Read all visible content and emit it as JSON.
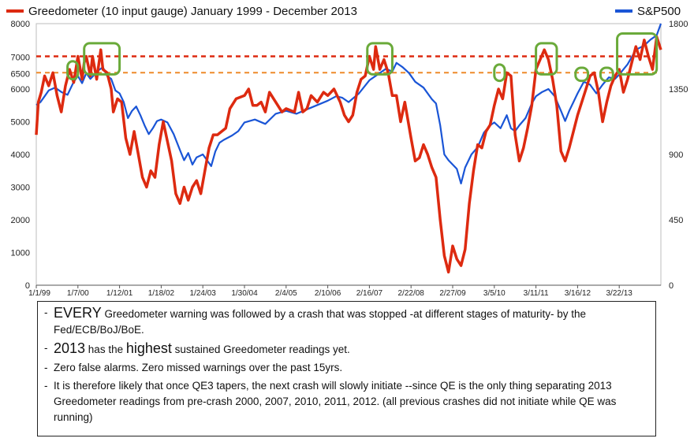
{
  "chart_data": {
    "type": "line",
    "title": "",
    "legend": {
      "left": "Greedometer (10 input gauge) January 1999 - December 2013",
      "right": "S&P500"
    },
    "colors": {
      "greedometer": "#dd2a10",
      "sp500": "#1a55d6",
      "upper_threshold": "#dd2a10",
      "lower_threshold": "#ee8a2a",
      "highlight": "#6aaa3a"
    },
    "left_axis": {
      "min": 0,
      "max": 8000,
      "ticks": [
        0,
        1000,
        2000,
        3000,
        4000,
        5000,
        6000,
        7000,
        8000
      ]
    },
    "right_axis": {
      "min": 0,
      "max": 1800,
      "ticks": [
        0,
        450,
        900,
        1350,
        1800
      ]
    },
    "threshold_labels": [
      {
        "value": 7000,
        "label": "7000"
      },
      {
        "value": 6500,
        "label": "6500"
      }
    ],
    "x_axis": {
      "start_year": 1999.0,
      "end_year": 2014.0,
      "tick_labels": [
        "1/1/99",
        "1/7/00",
        "1/12/01",
        "1/18/02",
        "1/24/03",
        "1/30/04",
        "2/4/05",
        "2/10/06",
        "2/16/07",
        "2/22/08",
        "2/27/09",
        "3/5/10",
        "3/11/11",
        "3/16/12",
        "3/22/13"
      ]
    },
    "series": [
      {
        "name": "Greedometer",
        "axis": "left",
        "x": [
          1999.0,
          1999.05,
          1999.12,
          1999.2,
          1999.3,
          1999.4,
          1999.5,
          1999.6,
          1999.7,
          1999.8,
          1999.9,
          2000.0,
          2000.1,
          2000.15,
          2000.2,
          2000.3,
          2000.35,
          2000.45,
          2000.55,
          2000.6,
          2000.7,
          2000.8,
          2000.85,
          2000.95,
          2001.05,
          2001.15,
          2001.25,
          2001.35,
          2001.45,
          2001.55,
          2001.65,
          2001.75,
          2001.85,
          2001.95,
          2002.05,
          2002.15,
          2002.25,
          2002.35,
          2002.45,
          2002.55,
          2002.65,
          2002.75,
          2002.85,
          2002.95,
          2003.05,
          2003.15,
          2003.25,
          2003.35,
          2003.45,
          2003.55,
          2003.65,
          2003.8,
          2004.0,
          2004.1,
          2004.2,
          2004.3,
          2004.4,
          2004.5,
          2004.6,
          2004.75,
          2004.9,
          2005.0,
          2005.2,
          2005.3,
          2005.4,
          2005.5,
          2005.6,
          2005.75,
          2005.9,
          2006.0,
          2006.15,
          2006.3,
          2006.4,
          2006.5,
          2006.6,
          2006.7,
          2006.8,
          2006.9,
          2007.0,
          2007.1,
          2007.15,
          2007.25,
          2007.35,
          2007.45,
          2007.55,
          2007.65,
          2007.75,
          2007.85,
          2008.0,
          2008.1,
          2008.2,
          2008.3,
          2008.4,
          2008.5,
          2008.6,
          2008.7,
          2008.8,
          2008.9,
          2009.0,
          2009.1,
          2009.2,
          2009.3,
          2009.4,
          2009.5,
          2009.6,
          2009.7,
          2009.8,
          2009.9,
          2010.0,
          2010.1,
          2010.2,
          2010.3,
          2010.4,
          2010.5,
          2010.6,
          2010.7,
          2010.8,
          2010.9,
          2011.0,
          2011.1,
          2011.2,
          2011.3,
          2011.4,
          2011.5,
          2011.6,
          2011.7,
          2011.8,
          2011.9,
          2012.0,
          2012.1,
          2012.2,
          2012.3,
          2012.4,
          2012.5,
          2012.6,
          2012.7,
          2012.8,
          2012.9,
          2013.0,
          2013.1,
          2013.2,
          2013.3,
          2013.4,
          2013.5,
          2013.6,
          2013.7,
          2013.8,
          2013.9,
          2014.0
        ],
        "values": [
          4600,
          5600,
          5900,
          6400,
          6100,
          6500,
          5800,
          5300,
          6100,
          6600,
          6200,
          7000,
          6300,
          6800,
          7000,
          6400,
          7000,
          6300,
          7200,
          6600,
          6500,
          6000,
          5300,
          5700,
          5600,
          4500,
          4000,
          4700,
          4000,
          3300,
          3000,
          3500,
          3300,
          4300,
          5000,
          4400,
          3800,
          2800,
          2500,
          3000,
          2600,
          3000,
          3200,
          2800,
          3500,
          4200,
          4600,
          4600,
          4700,
          4800,
          5400,
          5700,
          5800,
          6000,
          5500,
          5500,
          5600,
          5300,
          5900,
          5600,
          5300,
          5400,
          5300,
          5900,
          5300,
          5400,
          5800,
          5600,
          5900,
          5800,
          6000,
          5600,
          5200,
          5000,
          5200,
          5900,
          6300,
          6400,
          7000,
          6600,
          7300,
          6600,
          6900,
          6500,
          5800,
          5800,
          5000,
          5600,
          4500,
          3800,
          3900,
          4300,
          4000,
          3600,
          3300,
          2000,
          900,
          400,
          1200,
          800,
          600,
          1100,
          2500,
          3500,
          4300,
          4200,
          4700,
          4900,
          5500,
          6000,
          5700,
          6500,
          6400,
          4600,
          3800,
          4200,
          4800,
          5500,
          6600,
          6900,
          7200,
          6900,
          6300,
          5500,
          4100,
          3800,
          4200,
          4700,
          5200,
          5600,
          6000,
          6400,
          6500,
          5900,
          5000,
          5600,
          6100,
          6400,
          6600,
          5900,
          6300,
          6800,
          7300,
          6900,
          7500,
          7000,
          6600,
          7600,
          7200
        ]
      },
      {
        "name": "S&P500",
        "axis": "right",
        "x": [
          1999.0,
          1999.1,
          1999.2,
          1999.3,
          1999.45,
          1999.6,
          1999.75,
          1999.9,
          2000.0,
          2000.1,
          2000.2,
          2000.3,
          2000.4,
          2000.5,
          2000.6,
          2000.7,
          2000.8,
          2000.9,
          2001.0,
          2001.1,
          2001.2,
          2001.3,
          2001.4,
          2001.5,
          2001.6,
          2001.7,
          2001.8,
          2001.9,
          2002.0,
          2002.15,
          2002.3,
          2002.45,
          2002.55,
          2002.65,
          2002.75,
          2002.85,
          2003.0,
          2003.1,
          2003.2,
          2003.3,
          2003.4,
          2003.5,
          2003.7,
          2003.85,
          2004.0,
          2004.25,
          2004.5,
          2004.75,
          2005.0,
          2005.25,
          2005.5,
          2005.75,
          2006.0,
          2006.2,
          2006.35,
          2006.5,
          2006.75,
          2007.0,
          2007.25,
          2007.4,
          2007.55,
          2007.65,
          2007.8,
          2007.95,
          2008.1,
          2008.3,
          2008.5,
          2008.6,
          2008.7,
          2008.8,
          2008.9,
          2009.0,
          2009.1,
          2009.2,
          2009.3,
          2009.45,
          2009.6,
          2009.75,
          2009.9,
          2010.0,
          2010.15,
          2010.3,
          2010.4,
          2010.5,
          2010.6,
          2010.75,
          2010.9,
          2011.0,
          2011.15,
          2011.3,
          2011.45,
          2011.6,
          2011.7,
          2011.8,
          2011.9,
          2012.0,
          2012.15,
          2012.3,
          2012.45,
          2012.6,
          2012.75,
          2012.9,
          2013.0,
          2013.2,
          2013.4,
          2013.6,
          2013.75,
          2013.9,
          2014.0
        ],
        "values": [
          1240,
          1260,
          1300,
          1340,
          1360,
          1330,
          1310,
          1400,
          1440,
          1390,
          1460,
          1420,
          1450,
          1480,
          1500,
          1440,
          1420,
          1340,
          1320,
          1260,
          1150,
          1200,
          1230,
          1170,
          1100,
          1040,
          1080,
          1130,
          1140,
          1120,
          1040,
          930,
          860,
          910,
          830,
          880,
          900,
          860,
          820,
          920,
          980,
          1000,
          1030,
          1060,
          1120,
          1140,
          1110,
          1180,
          1200,
          1180,
          1210,
          1240,
          1270,
          1300,
          1290,
          1260,
          1320,
          1410,
          1460,
          1490,
          1470,
          1530,
          1500,
          1460,
          1400,
          1360,
          1280,
          1250,
          1100,
          900,
          860,
          830,
          800,
          700,
          810,
          900,
          950,
          1050,
          1100,
          1120,
          1080,
          1170,
          1080,
          1060,
          1100,
          1150,
          1250,
          1300,
          1330,
          1350,
          1300,
          1200,
          1130,
          1200,
          1260,
          1320,
          1400,
          1380,
          1320,
          1380,
          1430,
          1420,
          1450,
          1520,
          1620,
          1650,
          1690,
          1720,
          1800
        ]
      }
    ],
    "reference_lines": [
      {
        "value": 7000,
        "label": "7000"
      },
      {
        "value": 6500,
        "label": "6500"
      }
    ],
    "highlight_boxes": [
      {
        "x0": 1999.75,
        "x1": 2000.0,
        "y0": 6300,
        "y1": 6850
      },
      {
        "x0": 2000.15,
        "x1": 2001.0,
        "y0": 6450,
        "y1": 7400
      },
      {
        "x0": 2006.95,
        "x1": 2007.55,
        "y0": 6450,
        "y1": 7400
      },
      {
        "x0": 2010.0,
        "x1": 2010.25,
        "y0": 6250,
        "y1": 6750
      },
      {
        "x0": 2011.0,
        "x1": 2011.5,
        "y0": 6450,
        "y1": 7400
      },
      {
        "x0": 2011.95,
        "x1": 2012.25,
        "y0": 6250,
        "y1": 6650
      },
      {
        "x0": 2012.55,
        "x1": 2012.85,
        "y0": 6250,
        "y1": 6650
      },
      {
        "x0": 2012.95,
        "x1": 2013.9,
        "y0": 6450,
        "y1": 7700
      }
    ]
  },
  "notes": [
    {
      "lead": "EVERY",
      "text": " Greedometer warning was followed by a crash that was stopped -at different stages of maturity- by the Fed/ECB/BoJ/BoE."
    },
    {
      "lead": "2013",
      "text": " has the ",
      "emph": "highest",
      "tail": " sustained Greedometer readings yet."
    },
    {
      "lead": "",
      "text": "Zero false alarms. Zero missed warnings over the past 15yrs."
    },
    {
      "lead": "",
      "text": "It is therefore likely that once QE3 tapers, the next crash will slowly initiate --since QE is the only thing separating 2013 Greedometer readings from pre-crash 2000, 2007, 2010, 2011, 2012. (all previous crashes did not initiate while QE was running)"
    }
  ],
  "dash_char": "-"
}
